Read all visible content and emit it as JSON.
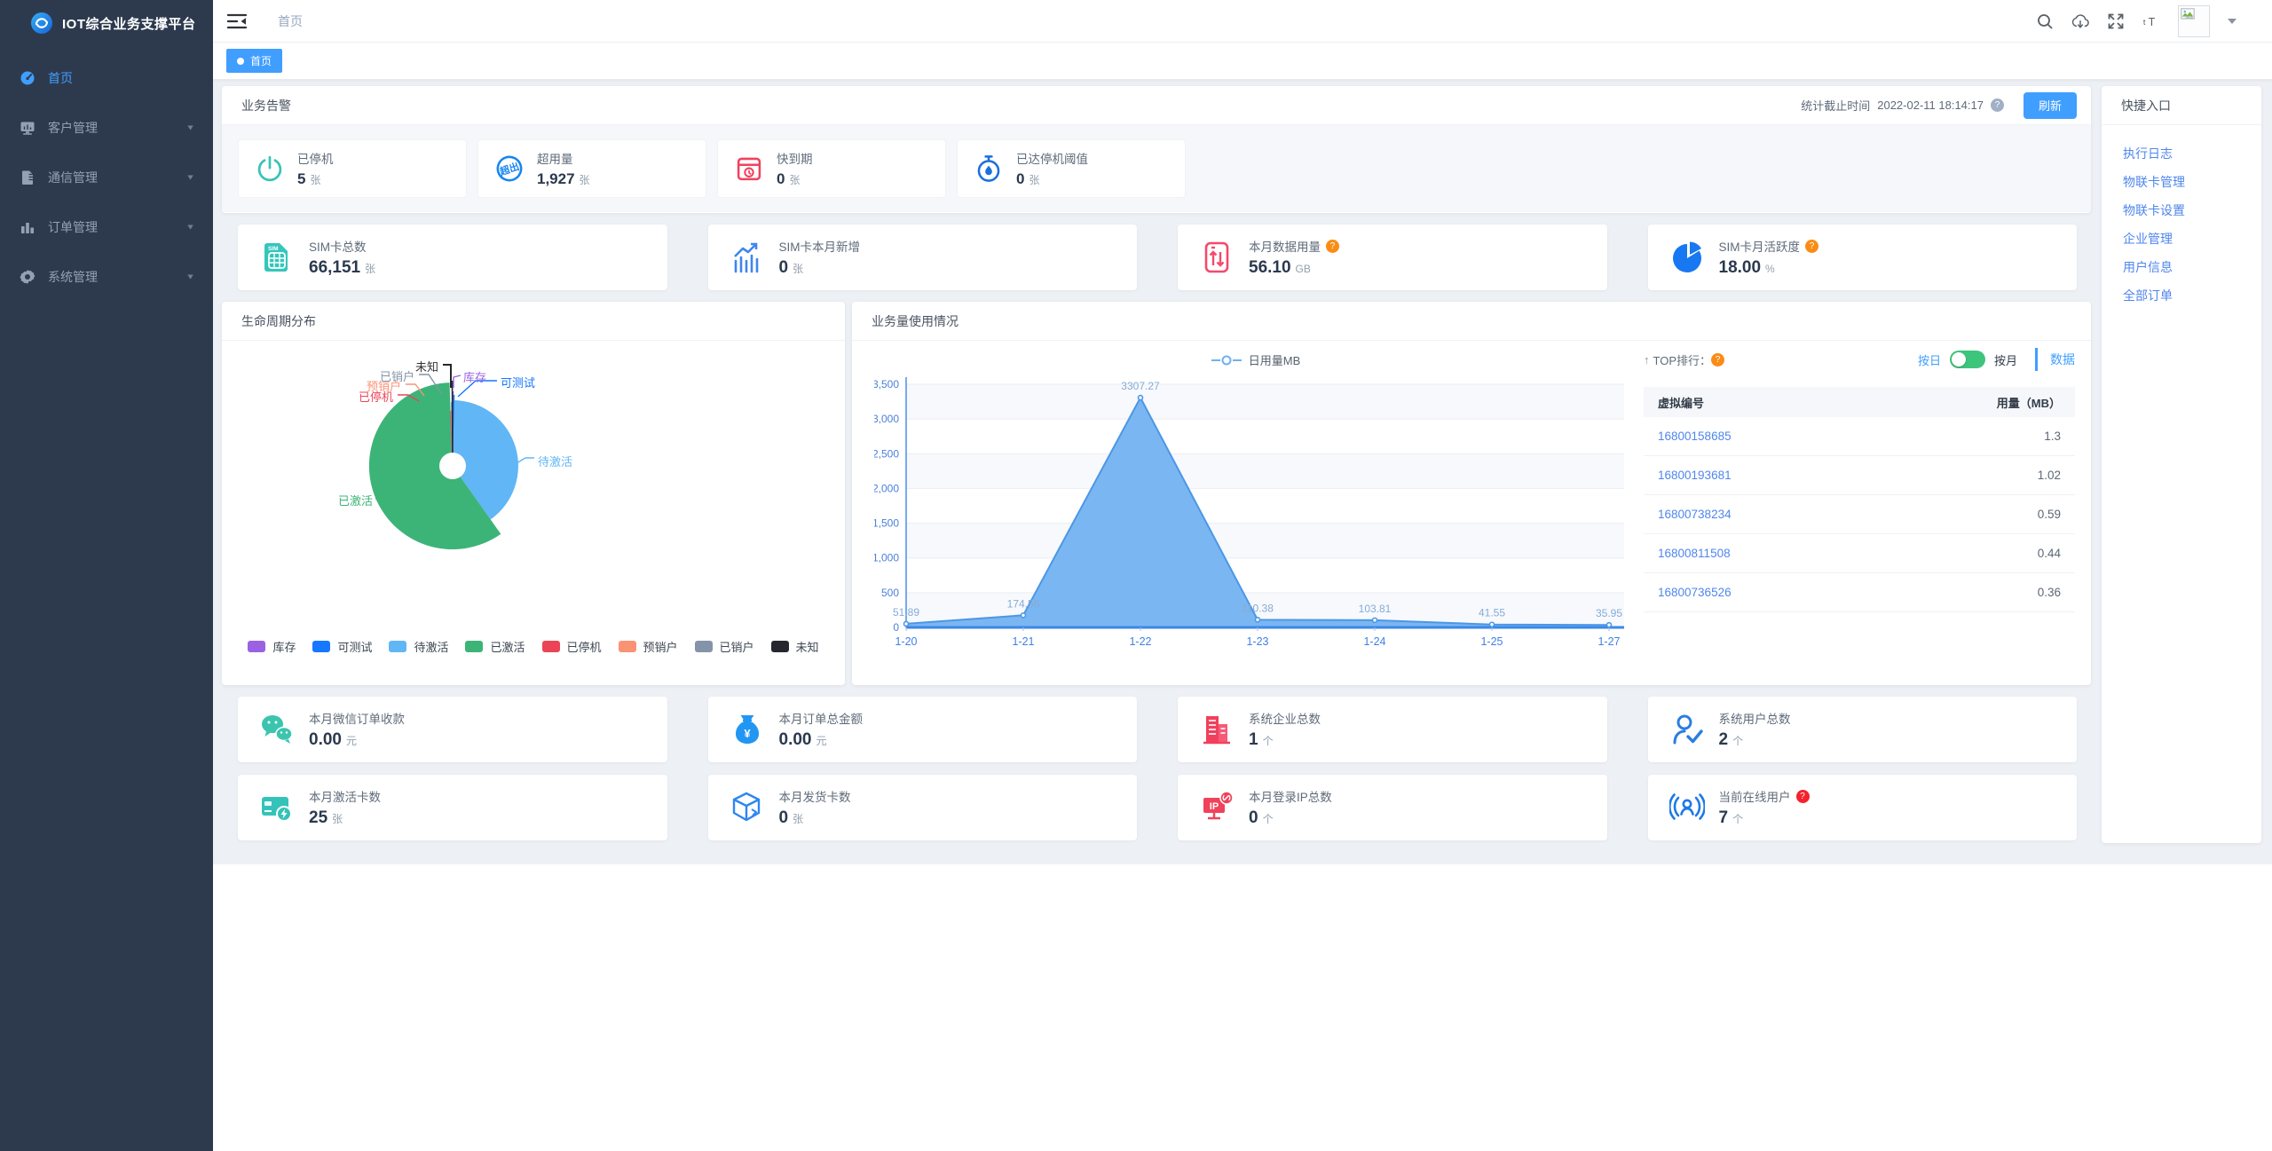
{
  "app_title": "IOT综合业务支撑平台",
  "sidebar": {
    "items": [
      {
        "label": "首页",
        "active": true
      },
      {
        "label": "客户管理",
        "active": false
      },
      {
        "label": "通信管理",
        "active": false
      },
      {
        "label": "订单管理",
        "active": false
      },
      {
        "label": "系统管理",
        "active": false
      }
    ]
  },
  "topbar": {
    "breadcrumb": "首页"
  },
  "tags_bar": {
    "active_tab": "首页"
  },
  "alarm": {
    "panel_title": "业务告警",
    "stat_time_label": "统计截止时间",
    "stat_time": "2022-02-11 18:14:17",
    "refresh_label": "刷新",
    "cards": [
      {
        "label": "已停机",
        "value": "5",
        "unit": "张"
      },
      {
        "label": "超用量",
        "value": "1,927",
        "unit": "张"
      },
      {
        "label": "快到期",
        "value": "0",
        "unit": "张"
      },
      {
        "label": "已达停机阈值",
        "value": "0",
        "unit": "张"
      }
    ]
  },
  "sim_stats": {
    "cards": [
      {
        "label": "SIM卡总数",
        "value": "66,151",
        "unit": "张"
      },
      {
        "label": "SIM卡本月新增",
        "value": "0",
        "unit": "张"
      },
      {
        "label": "本月数据用量",
        "value": "56.10",
        "unit": "GB"
      },
      {
        "label": "SIM卡月活跃度",
        "value": "18.00",
        "unit": "%"
      }
    ]
  },
  "lifecycle": {
    "panel_title": "生命周期分布"
  },
  "usage": {
    "panel_title": "业务量使用情况",
    "series_label": "日用量MB"
  },
  "top_rank": {
    "title_prefix": "↑",
    "title": "TOP排行：",
    "toggle_left": "按日",
    "toggle_right": "按月",
    "data_link": "数据",
    "columns": [
      "虚拟编号",
      "用量（MB）"
    ],
    "rows": [
      [
        "16800158685",
        "1.3"
      ],
      [
        "16800193681",
        "1.02"
      ],
      [
        "16800738234",
        "0.59"
      ],
      [
        "16800811508",
        "0.44"
      ],
      [
        "16800736526",
        "0.36"
      ]
    ]
  },
  "bottom_stats": {
    "row1": [
      {
        "label": "本月微信订单收款",
        "value": "0.00",
        "unit": "元"
      },
      {
        "label": "本月订单总金额",
        "value": "0.00",
        "unit": "元"
      },
      {
        "label": "系统企业总数",
        "value": "1",
        "unit": "个"
      },
      {
        "label": "系统用户总数",
        "value": "2",
        "unit": "个"
      }
    ],
    "row2": [
      {
        "label": "本月激活卡数",
        "value": "25",
        "unit": "张"
      },
      {
        "label": "本月发货卡数",
        "value": "0",
        "unit": "张"
      },
      {
        "label": "本月登录IP总数",
        "value": "0",
        "unit": "个"
      },
      {
        "label": "当前在线用户",
        "value": "7",
        "unit": "个"
      }
    ]
  },
  "quick_entry": {
    "panel_title": "快捷入口",
    "links": [
      "执行日志",
      "物联卡管理",
      "物联卡设置",
      "企业管理",
      "用户信息",
      "全部订单"
    ]
  },
  "icons": {
    "topbar": [
      "search-icon",
      "cloud-download-icon",
      "fullscreen-icon",
      "font-size-icon",
      "avatar-placeholder",
      "caret-down-icon"
    ],
    "sidebar": [
      "dashboard-icon",
      "monitor-icon",
      "sim-stack-icon",
      "bar-chart-icon",
      "gear-icon"
    ]
  },
  "palette": {
    "accent": "#409eff",
    "link": "#4f86ec",
    "sidebar_bg": "#2d3a4e",
    "teal": "#35c6bb",
    "red": "#f0425f",
    "blue": "#1785f0",
    "toggle_green": "#3ec57c",
    "help_orange": "#fa8c16",
    "help_red": "#f5222d"
  },
  "chart_data": [
    {
      "type": "pie",
      "title": "生命周期分布",
      "style": "rose-donut",
      "legend_position": "bottom",
      "labels": [
        "库存",
        "可测试",
        "待激活",
        "已激活",
        "已停机",
        "预销户",
        "已销户",
        "未知"
      ],
      "values_pct": [
        0.2,
        0.2,
        39.8,
        59.2,
        0.15,
        0.15,
        0.15,
        0.15
      ],
      "colors": [
        "#9a62e3",
        "#1677ff",
        "#61b6f5",
        "#3cb478",
        "#ec4457",
        "#fa9274",
        "#8494a8",
        "#26262e"
      ]
    },
    {
      "type": "line",
      "title": "业务量使用情况",
      "area": true,
      "grid": true,
      "legend_position": "top",
      "x": [
        "1-20",
        "1-21",
        "1-22",
        "1-23",
        "1-24",
        "1-25",
        "1-27"
      ],
      "series": [
        {
          "name": "日用量MB",
          "color": "#6fb0f0",
          "values": [
            51.89,
            174.56,
            3307.27,
            110.38,
            103.81,
            41.55,
            35.95
          ]
        }
      ],
      "ylim": [
        0,
        3500
      ],
      "yticks": [
        "0",
        "500",
        "1,000",
        "1,500",
        "2,000",
        "2,500",
        "3,000",
        "3,500"
      ]
    }
  ]
}
